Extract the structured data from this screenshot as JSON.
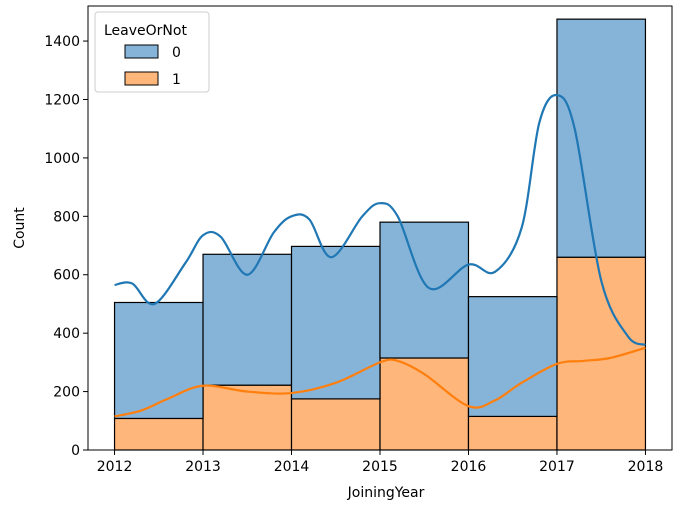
{
  "chart_data": {
    "type": "bar",
    "stacked": true,
    "xlabel": "JoiningYear",
    "ylabel": "Count",
    "xlim": [
      2012,
      2018
    ],
    "ylim": [
      0,
      1520
    ],
    "xticks": [
      "2012",
      "2013",
      "2014",
      "2015",
      "2016",
      "2017",
      "2018"
    ],
    "yticks": [
      "0",
      "200",
      "400",
      "600",
      "800",
      "1000",
      "1200",
      "1400"
    ],
    "bin_edges": [
      2012,
      2013,
      2014,
      2015,
      2016,
      2017,
      2018
    ],
    "legend": {
      "title": "LeaveOrNot",
      "placement": "top-left"
    },
    "series": [
      {
        "name": "1",
        "color": "#ffb67a",
        "line_color": "#ff7f0e",
        "values": [
          108,
          222,
          175,
          315,
          115,
          660
        ],
        "kde": [
          [
            2012,
            115
          ],
          [
            2012.3,
            135
          ],
          [
            2012.6,
            175
          ],
          [
            2013,
            220
          ],
          [
            2013.5,
            200
          ],
          [
            2014,
            195
          ],
          [
            2014.5,
            230
          ],
          [
            2015,
            300
          ],
          [
            2015.2,
            305
          ],
          [
            2015.5,
            260
          ],
          [
            2016,
            150
          ],
          [
            2016.3,
            170
          ],
          [
            2016.6,
            230
          ],
          [
            2017,
            295
          ],
          [
            2017.3,
            305
          ],
          [
            2017.6,
            315
          ],
          [
            2018,
            350
          ]
        ]
      },
      {
        "name": "0",
        "color": "#86b4d8",
        "line_color": "#1f77b4",
        "values": [
          397,
          448,
          522,
          465,
          410,
          815
        ],
        "kde": [
          [
            2012,
            565
          ],
          [
            2012.2,
            570
          ],
          [
            2012.45,
            500
          ],
          [
            2012.8,
            640
          ],
          [
            2013,
            735
          ],
          [
            2013.2,
            730
          ],
          [
            2013.5,
            600
          ],
          [
            2013.8,
            745
          ],
          [
            2014,
            800
          ],
          [
            2014.2,
            790
          ],
          [
            2014.45,
            660
          ],
          [
            2014.8,
            800
          ],
          [
            2015,
            845
          ],
          [
            2015.2,
            800
          ],
          [
            2015.55,
            555
          ],
          [
            2016,
            635
          ],
          [
            2016.3,
            610
          ],
          [
            2016.6,
            760
          ],
          [
            2016.8,
            1120
          ],
          [
            2017,
            1215
          ],
          [
            2017.2,
            1100
          ],
          [
            2017.5,
            580
          ],
          [
            2017.8,
            390
          ],
          [
            2018,
            360
          ]
        ]
      }
    ]
  }
}
